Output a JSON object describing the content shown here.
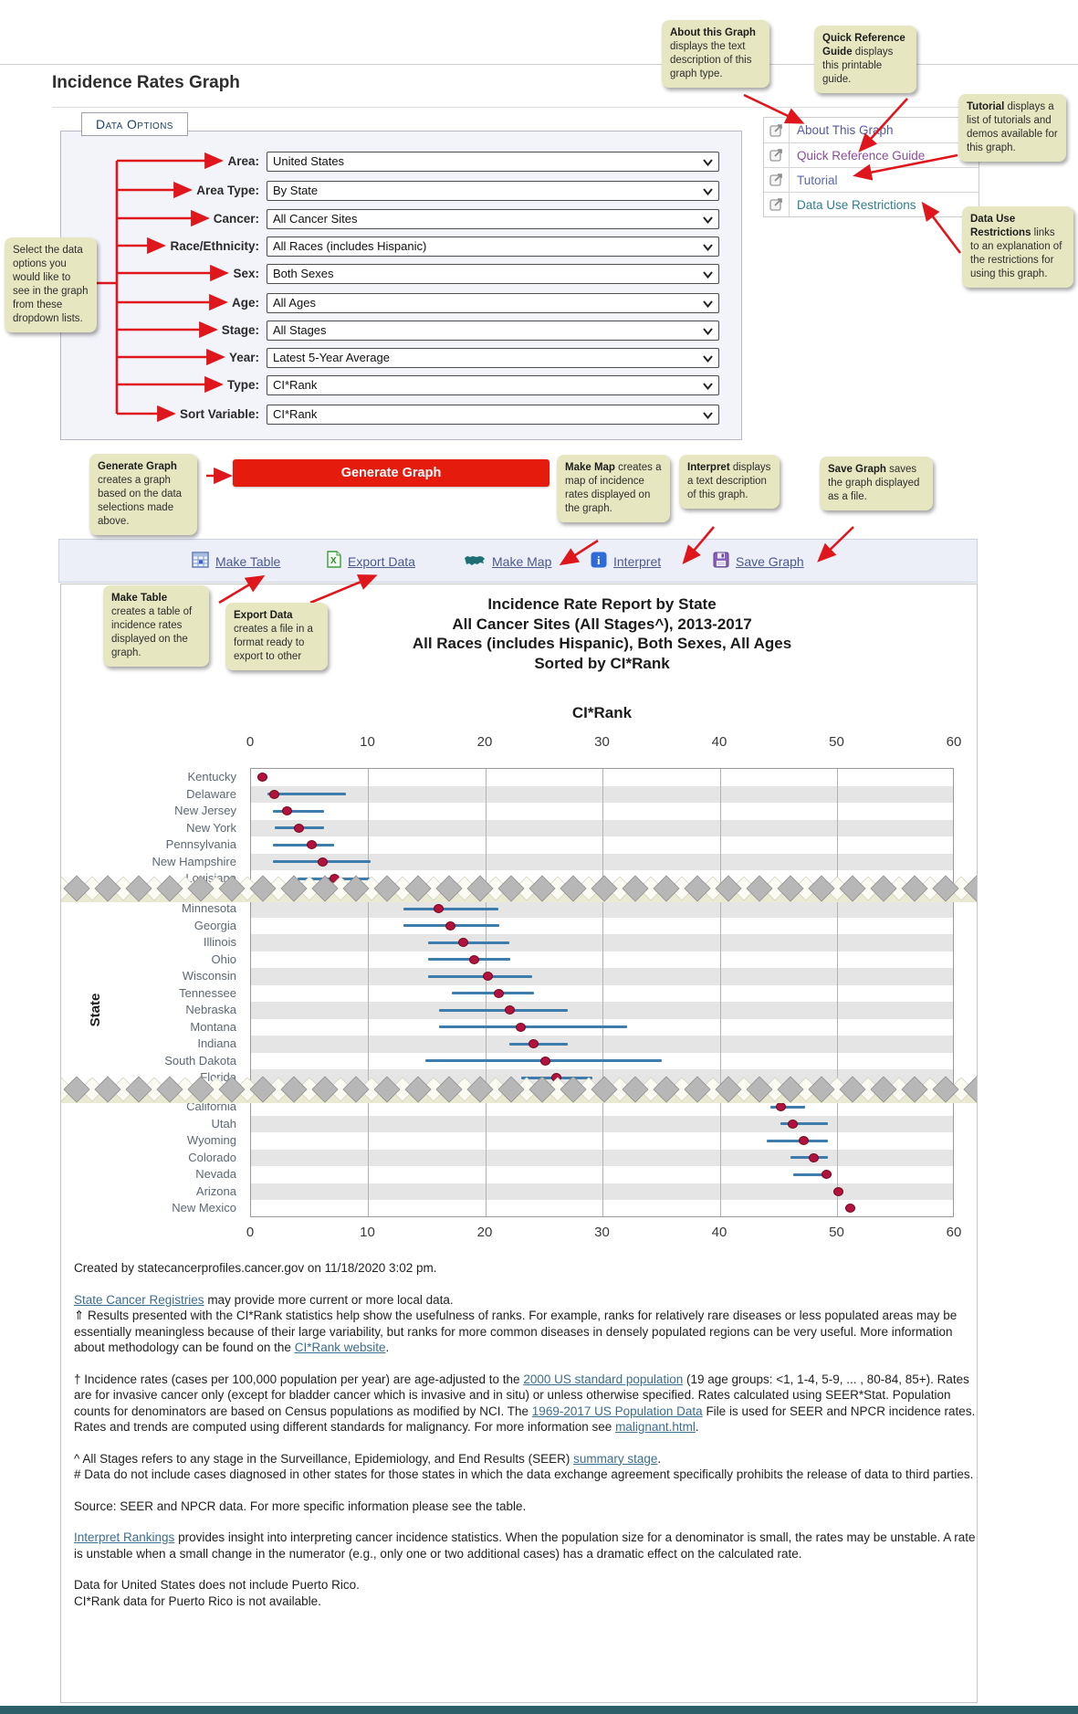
{
  "header": {
    "title": "Incidence Rates Graph"
  },
  "data_options": {
    "legend": "Data Options",
    "fields": [
      {
        "label": "Area:",
        "value": "United States"
      },
      {
        "label": "Area Type:",
        "value": "By State"
      },
      {
        "label": "Cancer:",
        "value": "All Cancer Sites"
      },
      {
        "label": "Race/Ethnicity:",
        "value": "All Races (includes Hispanic)"
      },
      {
        "label": "Sex:",
        "value": "Both Sexes"
      },
      {
        "label": "Age:",
        "value": "All Ages"
      },
      {
        "label": "Stage:",
        "value": "All Stages"
      },
      {
        "label": "Year:",
        "value": "Latest 5-Year Average"
      },
      {
        "label": "Type:",
        "value": "CI*Rank"
      },
      {
        "label": "Sort Variable:",
        "value": "CI*Rank"
      }
    ]
  },
  "quick_links": {
    "items": [
      {
        "label": "About This Graph",
        "color": "#565a9e"
      },
      {
        "label": "Quick Reference Guide",
        "color": "#8d4b9e"
      },
      {
        "label": "Tutorial",
        "color": "#5b67b0"
      },
      {
        "label": "Data Use Restrictions",
        "color": "#2f7e8e"
      }
    ]
  },
  "callouts": {
    "about": {
      "bold": "About this Graph",
      "rest": "displays the text description of this graph type."
    },
    "quick_reference": {
      "bold": "Quick Reference Guide",
      "rest": "displays this printable guide."
    },
    "tutorial": {
      "bold": "Tutorial",
      "rest": "displays a list of tutorials and demos available for this graph."
    },
    "data_use": {
      "bold": "Data Use Restrictions",
      "rest": "links to an explanation of the restrictions for using this graph."
    },
    "select_data": {
      "bold": "",
      "rest": "Select the data options you would like to see in the graph from these dropdown lists."
    },
    "generate": {
      "bold": "Generate Graph",
      "rest": "creates a graph based on the data selections made above."
    },
    "make_map": {
      "bold": "Make Map",
      "rest": "creates a map of incidence rates displayed on the graph."
    },
    "interpret": {
      "bold": "Interpret",
      "rest": "displays a text description of this graph."
    },
    "save_graph": {
      "bold": "Save Graph",
      "rest": "saves the graph displayed as a file."
    },
    "make_table": {
      "bold": "Make Table",
      "rest": "creates a table of incidence rates displayed on the graph."
    },
    "export_data": {
      "bold": "Export Data",
      "rest": "creates a file in a format ready to export to other"
    }
  },
  "generate_button": {
    "label": "Generate Graph",
    "color": "#e51b0e"
  },
  "toolbar": {
    "items": [
      {
        "label": "Make Table",
        "icon": "table-icon"
      },
      {
        "label": "Export Data",
        "icon": "excel-icon"
      },
      {
        "label": "Make Map",
        "icon": "map-icon"
      },
      {
        "label": "Interpret",
        "icon": "info-icon"
      },
      {
        "label": "Save Graph",
        "icon": "save-icon"
      }
    ]
  },
  "chart_data": {
    "type": "scatter",
    "title_lines": [
      "Incidence Rate Report by State",
      "All Cancer Sites (All Stages^), 2013-2017",
      "All Races (includes Hispanic), Both Sexes, All Ages",
      "Sorted by CI*Rank"
    ],
    "xlabel": "CI*Rank",
    "ylabel": "State",
    "xlim": [
      0,
      60
    ],
    "xticks": [
      0,
      10,
      20,
      30,
      40,
      50,
      60
    ],
    "series_note": "red dot = CI*Rank estimate, blue bar = confidence interval; jagged bands are axis breaks hiding intermediate ranks",
    "sections": [
      {
        "stripe_start": "white",
        "rows": [
          {
            "state": "Kentucky",
            "rank": 1.0,
            "ci": [
              1.0,
              1.0
            ]
          },
          {
            "state": "Delaware",
            "rank": 2.0,
            "ci": [
              1.4,
              8.1
            ]
          },
          {
            "state": "New Jersey",
            "rank": 3.1,
            "ci": [
              1.9,
              6.2
            ]
          },
          {
            "state": "New York",
            "rank": 4.1,
            "ci": [
              2.0,
              6.2
            ]
          },
          {
            "state": "Pennsylvania",
            "rank": 5.2,
            "ci": [
              1.9,
              7.1
            ]
          },
          {
            "state": "New Hampshire",
            "rank": 6.1,
            "ci": [
              1.9,
              10.2
            ]
          },
          {
            "state": "Louisiana",
            "rank": 7.1,
            "ci": [
              4.0,
              10.2
            ]
          }
        ]
      },
      {
        "stripe_start": "gray",
        "rows": [
          {
            "state": "Minnesota",
            "rank": 16.0,
            "ci": [
              13.0,
              21.1
            ]
          },
          {
            "state": "Georgia",
            "rank": 17.0,
            "ci": [
              13.0,
              21.2
            ]
          },
          {
            "state": "Illinois",
            "rank": 18.1,
            "ci": [
              15.1,
              22.0
            ]
          },
          {
            "state": "Ohio",
            "rank": 19.0,
            "ci": [
              15.1,
              22.1
            ]
          },
          {
            "state": "Wisconsin",
            "rank": 20.2,
            "ci": [
              15.1,
              24.0
            ]
          },
          {
            "state": "Tennessee",
            "rank": 21.1,
            "ci": [
              17.1,
              24.1
            ]
          },
          {
            "state": "Nebraska",
            "rank": 22.1,
            "ci": [
              16.0,
              27.0
            ]
          },
          {
            "state": "Montana",
            "rank": 23.0,
            "ci": [
              16.0,
              32.1
            ]
          },
          {
            "state": "Indiana",
            "rank": 24.1,
            "ci": [
              22.0,
              27.0
            ]
          },
          {
            "state": "South Dakota",
            "rank": 25.1,
            "ci": [
              14.9,
              35.0
            ]
          },
          {
            "state": "Florida",
            "rank": 26.0,
            "ci": [
              23.0,
              29.1
            ]
          }
        ]
      },
      {
        "stripe_start": "white",
        "rows": [
          {
            "state": "California",
            "rank": 45.2,
            "ci": [
              44.3,
              47.2
            ]
          },
          {
            "state": "Utah",
            "rank": 46.2,
            "ci": [
              45.1,
              49.2
            ]
          },
          {
            "state": "Wyoming",
            "rank": 47.1,
            "ci": [
              44.0,
              49.2
            ]
          },
          {
            "state": "Colorado",
            "rank": 48.0,
            "ci": [
              46.0,
              49.2
            ]
          },
          {
            "state": "Nevada",
            "rank": 49.1,
            "ci": [
              46.2,
              49.4
            ]
          },
          {
            "state": "Arizona",
            "rank": 50.1,
            "ci": [
              50.1,
              50.1
            ]
          },
          {
            "state": "New Mexico",
            "rank": 51.1,
            "ci": [
              51.1,
              51.1
            ]
          }
        ]
      }
    ],
    "colors": {
      "dot": "#b2123b",
      "dot_border": "#6e0a22",
      "ci_line": "#3e7cab",
      "stripe": "#e5e5e5",
      "grid": "#b3b3b3"
    }
  },
  "footer": {
    "paragraphs": [
      {
        "gap": false,
        "segments": [
          {
            "t": "Created by statecancerprofiles.cancer.gov on 11/18/2020 3:02 pm."
          }
        ]
      },
      {
        "gap": true,
        "segments": [
          {
            "t": "State Cancer Registries",
            "link": true
          },
          {
            "t": " may provide more current or more local data."
          }
        ]
      },
      {
        "gap": false,
        "segments": [
          {
            "t": "⇑ Results presented with the CI*Rank statistics help show the usefulness of ranks. For example, ranks for relatively rare diseases or less populated areas may be essentially meaningless because of their large variability, but ranks for more common diseases in densely populated regions can be very useful. More information about methodology can be found on the "
          },
          {
            "t": "CI*Rank website",
            "link": true
          },
          {
            "t": "."
          }
        ]
      },
      {
        "gap": true,
        "segments": [
          {
            "t": "† Incidence rates (cases per 100,000 population per year) are age-adjusted to the "
          },
          {
            "t": "2000 US standard population",
            "link": true
          },
          {
            "t": " (19 age groups: <1, 1-4, 5-9, ... , 80-84, 85+). Rates are for invasive cancer only (except for bladder cancer which is invasive and in situ) or unless otherwise specified. Rates calculated using SEER*Stat. Population counts for denominators are based on Census populations as modified by NCI. The "
          },
          {
            "t": "1969-2017 US Population Data",
            "link": true
          },
          {
            "t": " File is used for SEER and NPCR incidence rates."
          }
        ]
      },
      {
        "gap": false,
        "segments": [
          {
            "t": "Rates and trends are computed using different standards for malignancy. For more information see "
          },
          {
            "t": "malignant.html",
            "link": true
          },
          {
            "t": "."
          }
        ]
      },
      {
        "gap": true,
        "segments": [
          {
            "t": "^ All Stages refers to any stage in the Surveillance, Epidemiology, and End Results (SEER) "
          },
          {
            "t": "summary stage",
            "link": true
          },
          {
            "t": "."
          }
        ]
      },
      {
        "gap": false,
        "segments": [
          {
            "t": "# Data do not include cases diagnosed in other states for those states in which the data exchange agreement specifically prohibits the release of data to third parties."
          }
        ]
      },
      {
        "gap": true,
        "segments": [
          {
            "t": "Source: SEER and NPCR data. For more specific information please see the table."
          }
        ]
      },
      {
        "gap": true,
        "segments": [
          {
            "t": "Interpret Rankings",
            "link": true
          },
          {
            "t": " provides insight into interpreting cancer incidence statistics. When the population size for a denominator is small, the rates may be unstable. A rate is unstable when a small change in the numerator (e.g., only one or two additional cases) has a dramatic effect on the calculated rate."
          }
        ]
      },
      {
        "gap": true,
        "segments": [
          {
            "t": "Data for United States does not include Puerto Rico."
          }
        ]
      },
      {
        "gap": false,
        "segments": [
          {
            "t": "CI*Rank data for Puerto Rico is not available."
          }
        ]
      }
    ]
  }
}
